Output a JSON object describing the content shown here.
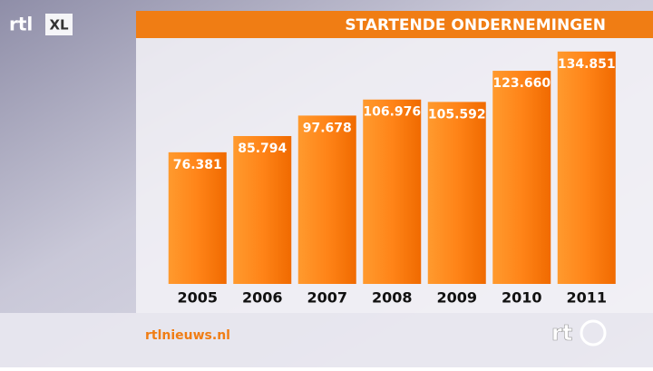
{
  "chart_data": {
    "type": "bar",
    "title": "STARTENDE ONDERNEMINGEN",
    "categories": [
      "2005",
      "2006",
      "2007",
      "2008",
      "2009",
      "2010",
      "2011"
    ],
    "values": [
      76381,
      85794,
      97678,
      106976,
      105592,
      123660,
      134851
    ],
    "value_labels": [
      "76.381",
      "85.794",
      "97.678",
      "106.976",
      "105.592",
      "123.660",
      "134.851"
    ],
    "color": "#ff7f0e",
    "ylim": [
      0,
      140000
    ],
    "source": "rtlnieuws.nl",
    "logo_top": "rtl",
    "logo_top_badge": "XL",
    "logo_bottom": "rt"
  }
}
